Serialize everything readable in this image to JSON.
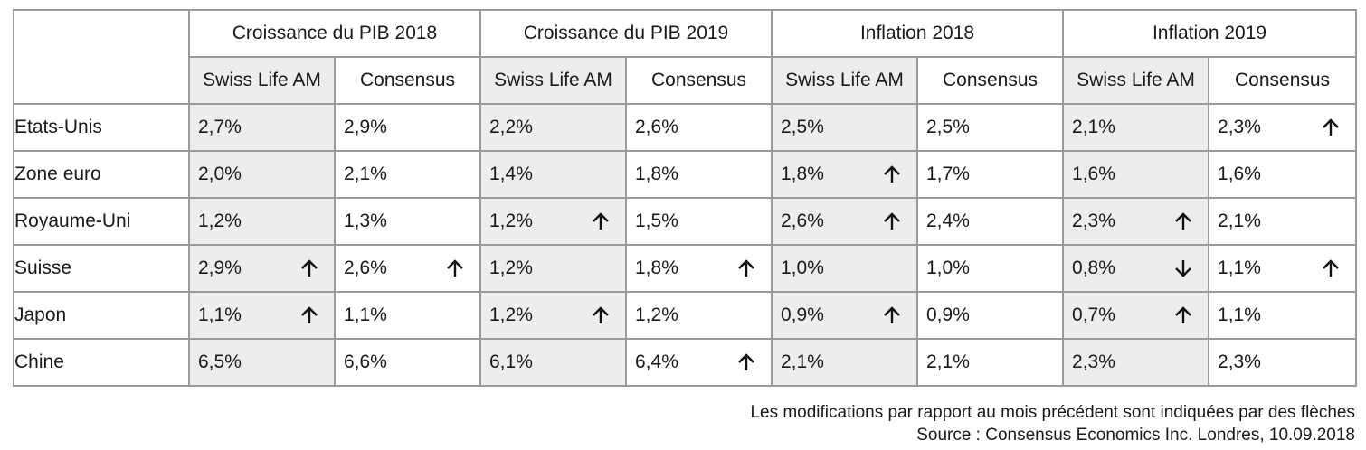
{
  "chart_data": {
    "type": "table",
    "column_groups": [
      "Croissance du PIB 2018",
      "Croissance du PIB 2019",
      "Inflation 2018",
      "Inflation 2019"
    ],
    "sub_columns": [
      "Swiss Life AM",
      "Consensus"
    ],
    "rows": [
      {
        "country": "Etats-Unis",
        "values": [
          "2,7%",
          "2,9%",
          "2,2%",
          "2,6%",
          "2,5%",
          "2,5%",
          "2,1%",
          "2,3%"
        ],
        "arrows": [
          "",
          "",
          "",
          "",
          "",
          "",
          "",
          "up"
        ]
      },
      {
        "country": "Zone euro",
        "values": [
          "2,0%",
          "2,1%",
          "1,4%",
          "1,8%",
          "1,8%",
          "1,7%",
          "1,6%",
          "1,6%"
        ],
        "arrows": [
          "",
          "",
          "",
          "",
          "up",
          "",
          "",
          ""
        ]
      },
      {
        "country": "Royaume-Uni",
        "values": [
          "1,2%",
          "1,3%",
          "1,2%",
          "1,5%",
          "2,6%",
          "2,4%",
          "2,3%",
          "2,1%"
        ],
        "arrows": [
          "",
          "",
          "up",
          "",
          "up",
          "",
          "up",
          ""
        ]
      },
      {
        "country": "Suisse",
        "values": [
          "2,9%",
          "2,6%",
          "1,2%",
          "1,8%",
          "1,0%",
          "1,0%",
          "0,8%",
          "1,1%"
        ],
        "arrows": [
          "up",
          "up",
          "",
          "up",
          "",
          "",
          "down",
          "up"
        ]
      },
      {
        "country": "Japon",
        "values": [
          "1,1%",
          "1,1%",
          "1,2%",
          "1,2%",
          "0,9%",
          "0,9%",
          "0,7%",
          "1,1%"
        ],
        "arrows": [
          "up",
          "",
          "up",
          "",
          "up",
          "",
          "up",
          ""
        ]
      },
      {
        "country": "Chine",
        "values": [
          "6,5%",
          "6,6%",
          "6,1%",
          "6,4%",
          "2,1%",
          "2,1%",
          "2,3%",
          "2,3%"
        ],
        "arrows": [
          "",
          "",
          "",
          "up",
          "",
          "",
          "",
          ""
        ]
      }
    ],
    "note": "Les modifications par rapport au mois précédent sont indiquées par des flèches",
    "source": "Source : Consensus Economics Inc. Londres, 10.09.2018"
  },
  "colors": {
    "swiss_cell_bg": "#ededed",
    "border": "#9a9a9a",
    "text": "#1a1a1a"
  }
}
